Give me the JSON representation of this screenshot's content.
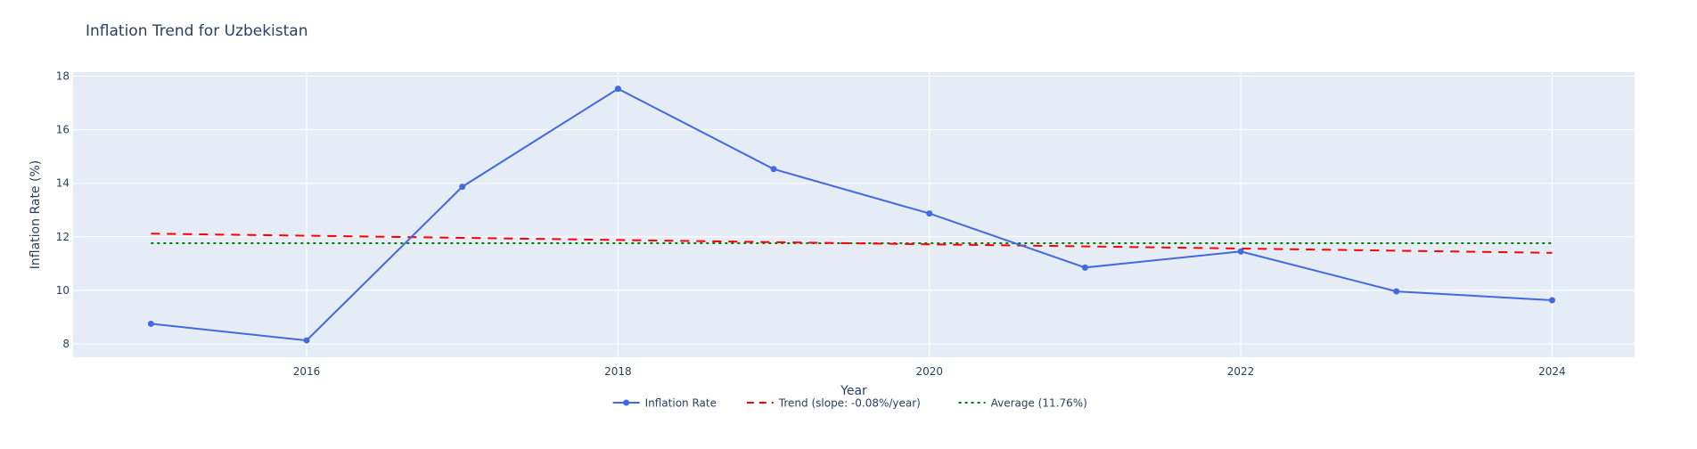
{
  "chart_data": {
    "type": "line",
    "title": "Inflation Trend for Uzbekistan",
    "xlabel": "Year",
    "ylabel": "Inflation Rate (%)",
    "x": [
      2015,
      2016,
      2017,
      2018,
      2019,
      2020,
      2021,
      2022,
      2023,
      2024
    ],
    "xlim": [
      2014.5,
      2024.53
    ],
    "ylim": [
      7.5,
      18.15
    ],
    "x_ticks": [
      2016,
      2018,
      2020,
      2022,
      2024
    ],
    "y_ticks": [
      8,
      10,
      12,
      14,
      16,
      18
    ],
    "grid": true,
    "legend_position": "bottom-center",
    "series": [
      {
        "name": "Inflation Rate",
        "style": "line+markers",
        "color": "#4169e1",
        "values": [
          8.75,
          8.13,
          13.87,
          17.53,
          14.53,
          12.87,
          10.85,
          11.45,
          9.96,
          9.63
        ]
      },
      {
        "name": "Trend (slope: -0.08%/year)",
        "style": "dashed",
        "color": "#ff0000",
        "values": [
          12.12,
          12.04,
          11.96,
          11.88,
          11.8,
          11.72,
          11.64,
          11.56,
          11.48,
          11.4
        ]
      },
      {
        "name": "Average (11.76%)",
        "style": "dotted",
        "color": "#008000",
        "values": [
          11.76,
          11.76,
          11.76,
          11.76,
          11.76,
          11.76,
          11.76,
          11.76,
          11.76,
          11.76
        ]
      }
    ]
  }
}
